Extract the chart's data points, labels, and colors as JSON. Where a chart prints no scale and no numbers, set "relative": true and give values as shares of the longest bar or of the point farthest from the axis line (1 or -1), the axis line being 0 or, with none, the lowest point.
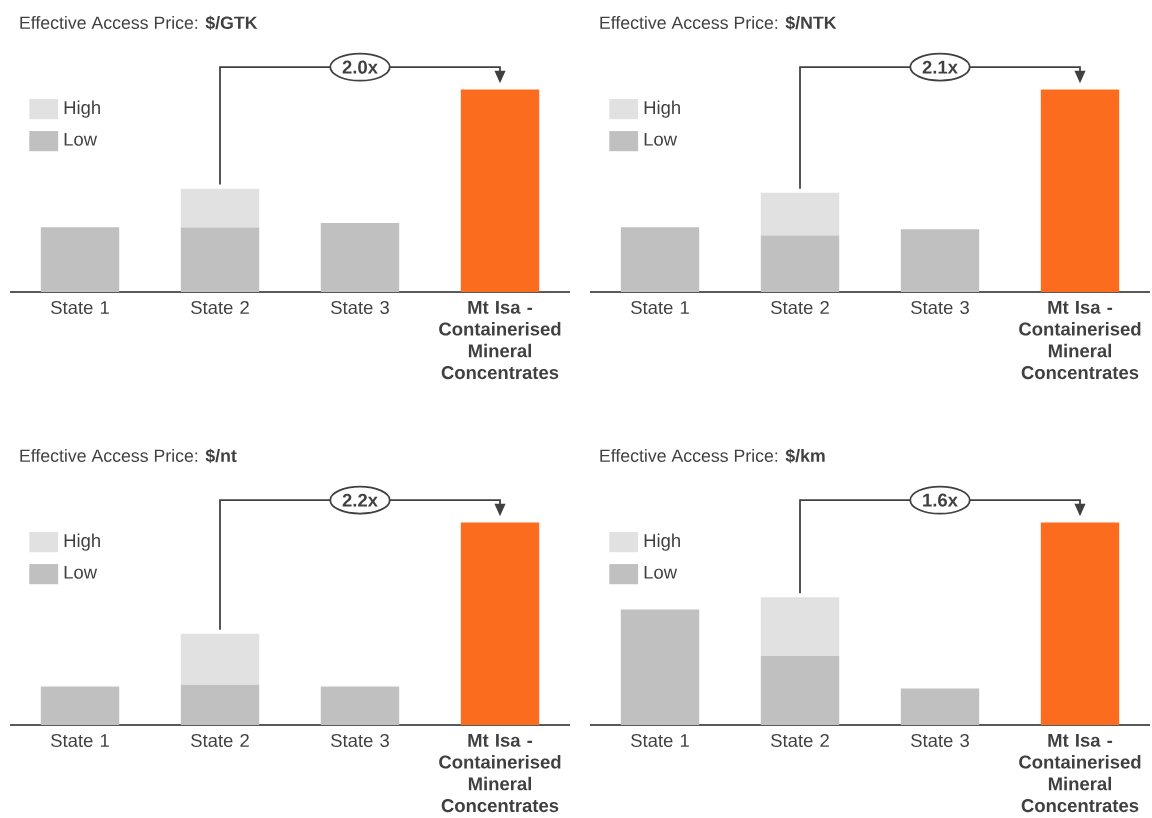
{
  "chart_data": [
    {
      "type": "bar",
      "title": "Effective Access Price: **$/GTK**",
      "categories": [
        "State 1",
        "State 2",
        "State 3",
        "**Mt Isa - Containerised Mineral Concentrates**"
      ],
      "relative": true,
      "stacked": true,
      "legend": "top left",
      "annotations": [
        "2.0x"
      ],
      "series": [
        {
          "name": "Low",
          "color": "#c0c0c0",
          "colors": [
            "#c0c0c0",
            "#c0c0c0",
            "#c0c0c0",
            "#fb6c1f"
          ],
          "values": [
            0.32,
            0.32,
            0.34,
            1
          ]
        },
        {
          "name": "High",
          "color": "#e1e1e1",
          "values": [
            null,
            0.19,
            null,
            null
          ]
        }
      ]
    },
    {
      "type": "bar",
      "title": "Effective Access Price: **$/NTK**",
      "categories": [
        "State 1",
        "State 2",
        "State 3",
        "**Mt Isa - Containerised Mineral Concentrates**"
      ],
      "relative": true,
      "stacked": true,
      "legend": "top left",
      "annotations": [
        "2.1x"
      ],
      "series": [
        {
          "name": "Low",
          "color": "#c0c0c0",
          "colors": [
            "#c0c0c0",
            "#c0c0c0",
            "#c0c0c0",
            "#fb6c1f"
          ],
          "values": [
            0.32,
            0.28,
            0.31,
            1
          ]
        },
        {
          "name": "High",
          "color": "#e1e1e1",
          "values": [
            null,
            0.21,
            null,
            null
          ]
        }
      ]
    },
    {
      "type": "bar",
      "title": "Effective Access Price: **$/nt**",
      "categories": [
        "State 1",
        "State 2",
        "State 3",
        "**Mt Isa - Containerised Mineral Concentrates**"
      ],
      "relative": true,
      "stacked": true,
      "legend": "top left",
      "annotations": [
        "2.2x"
      ],
      "series": [
        {
          "name": "Low",
          "color": "#c0c0c0",
          "colors": [
            "#c0c0c0",
            "#c0c0c0",
            "#c0c0c0",
            "#fb6c1f"
          ],
          "values": [
            0.19,
            0.2,
            0.19,
            1
          ]
        },
        {
          "name": "High",
          "color": "#e1e1e1",
          "values": [
            null,
            0.25,
            null,
            null
          ]
        }
      ]
    },
    {
      "type": "bar",
      "title": "Effective Access Price: **$/km**",
      "categories": [
        "State 1",
        "State 2",
        "State 3",
        "**Mt Isa - Containerised Mineral Concentrates**"
      ],
      "relative": true,
      "stacked": true,
      "legend": "top left",
      "annotations": [
        "1.6x"
      ],
      "series": [
        {
          "name": "Low",
          "color": "#c0c0c0",
          "colors": [
            "#c0c0c0",
            "#c0c0c0",
            "#c0c0c0",
            "#fb6c1f"
          ],
          "values": [
            0.57,
            0.34,
            0.18,
            1
          ]
        },
        {
          "name": "High",
          "color": "#e1e1e1",
          "values": [
            null,
            0.29,
            null,
            null
          ]
        }
      ]
    }
  ]
}
